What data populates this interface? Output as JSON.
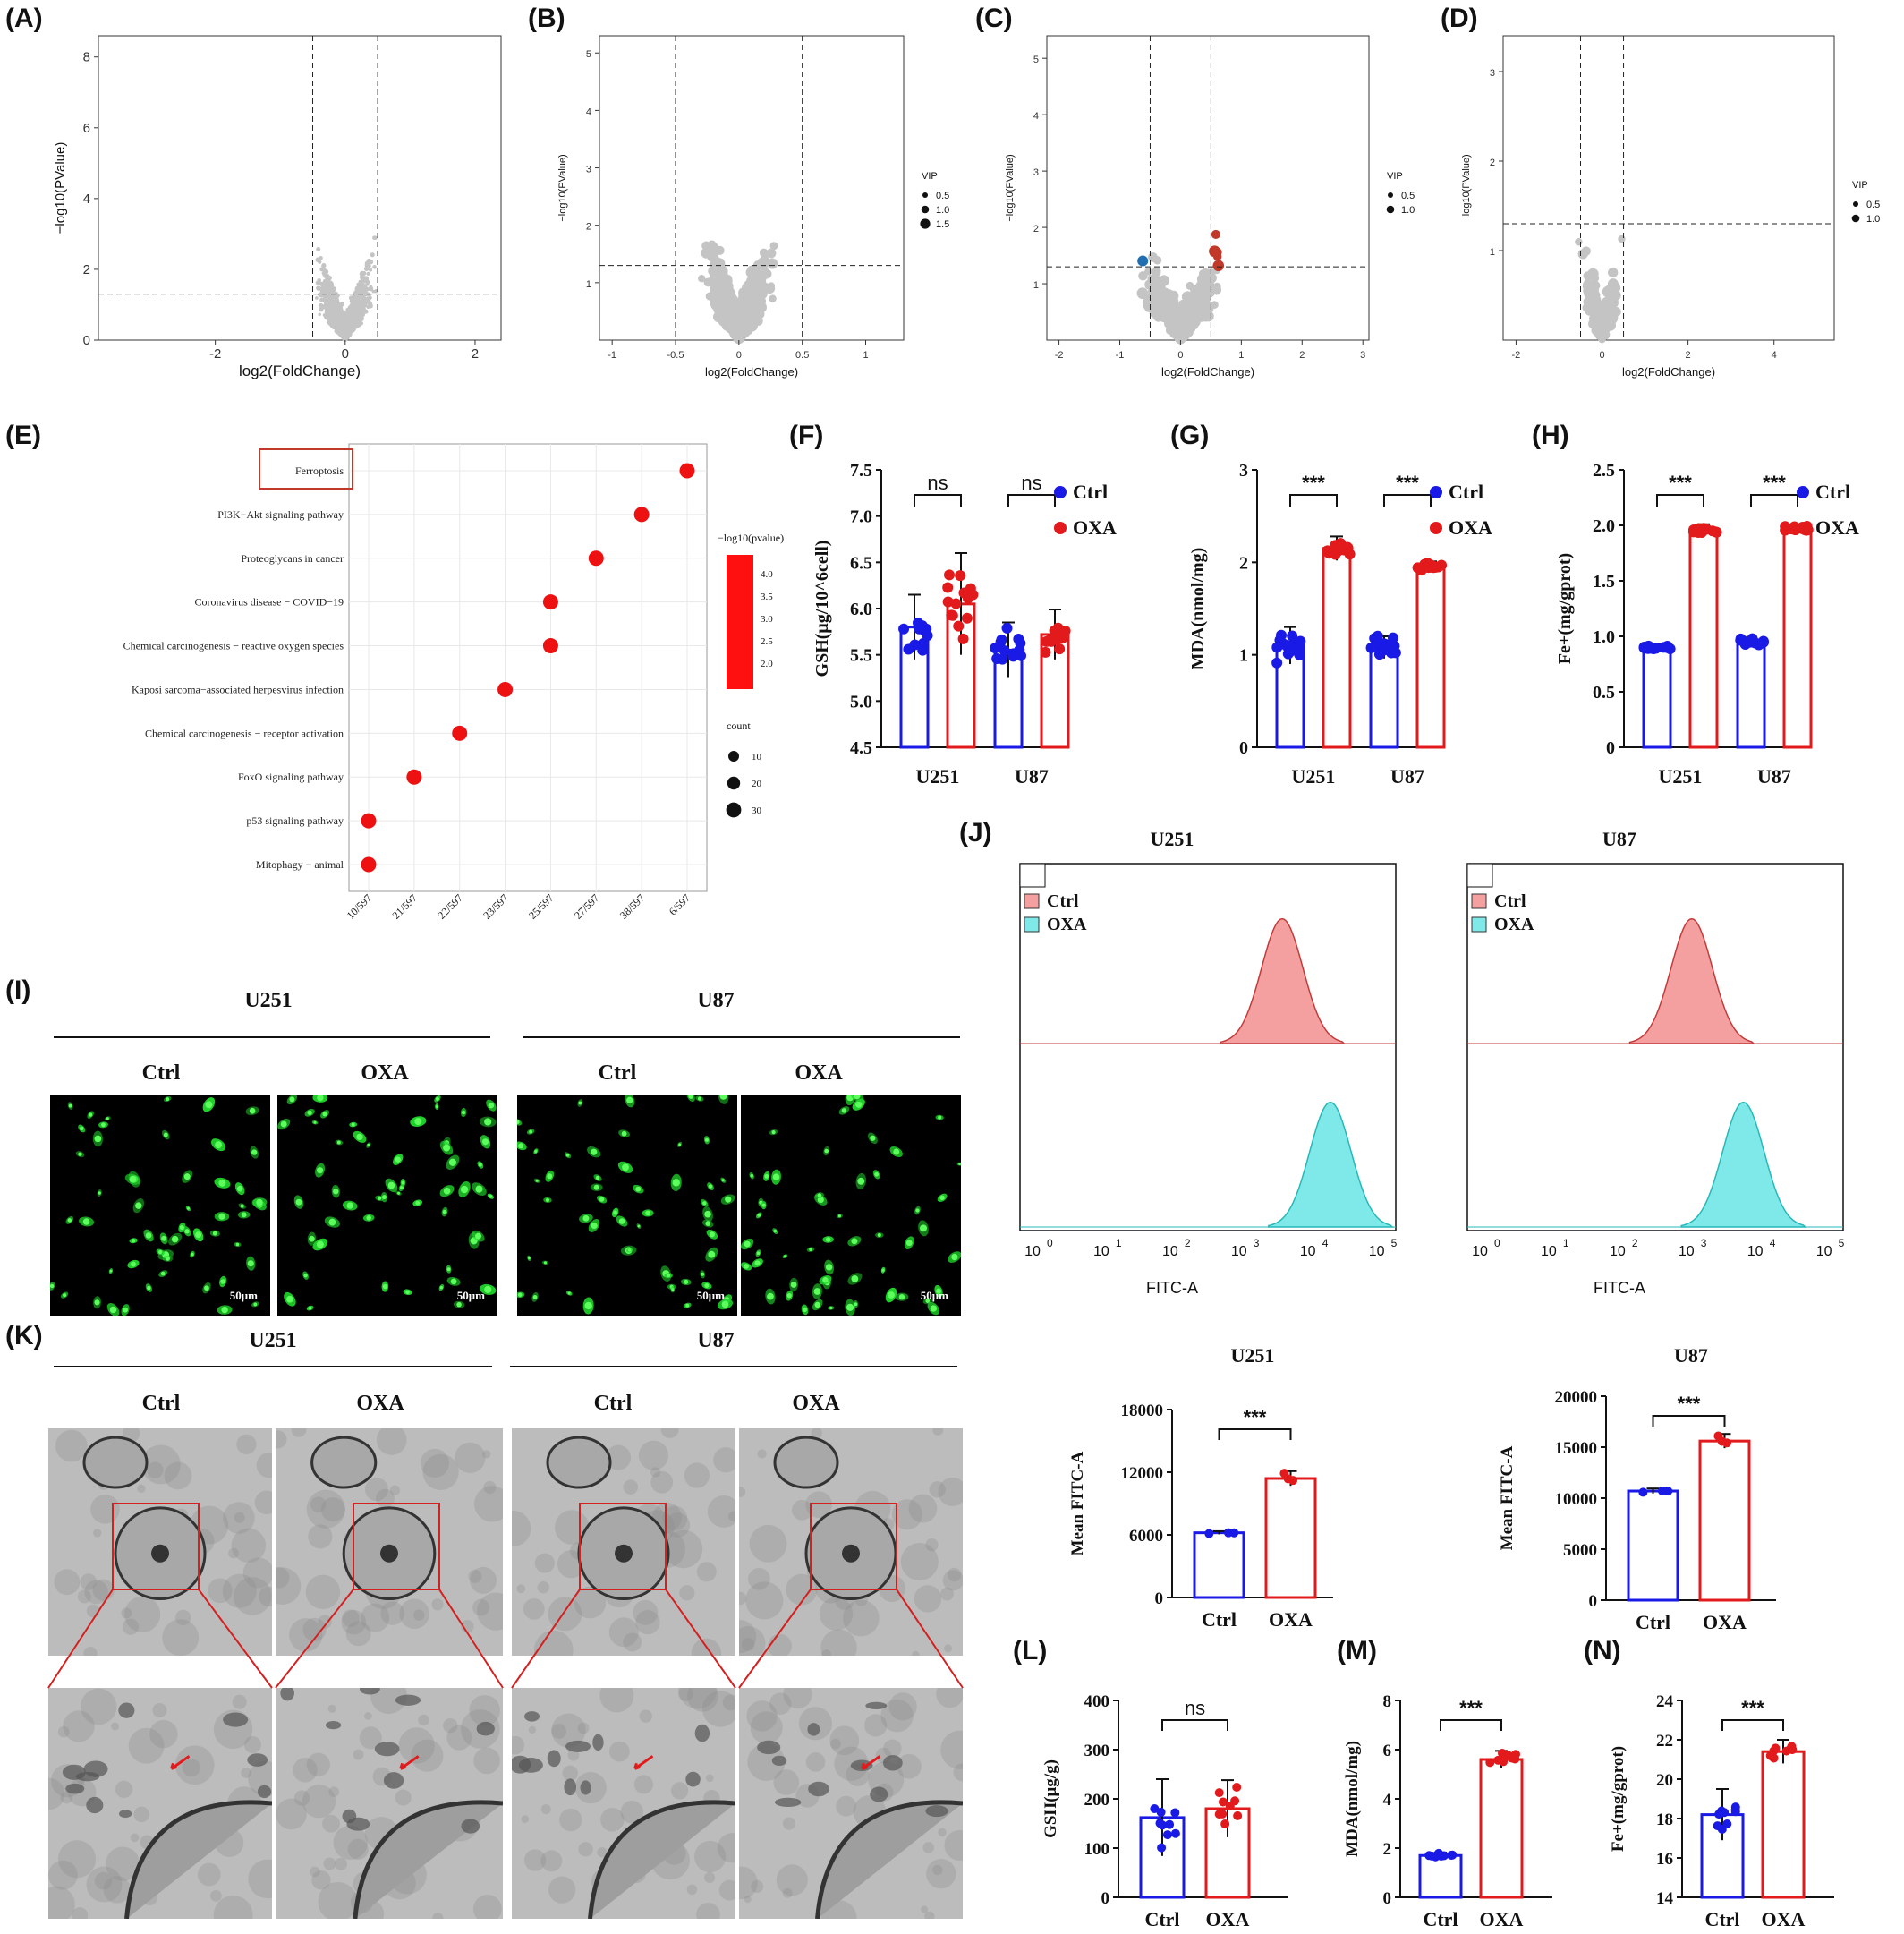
{
  "panel_labels": [
    "(A)",
    "(B)",
    "(C)",
    "(D)",
    "(E)",
    "(F)",
    "(G)",
    "(H)",
    "(I)",
    "(J)",
    "(K)",
    "(L)",
    "(M)",
    "(N)"
  ],
  "colors": {
    "down": "#1f6fb2",
    "up": "#c0392b",
    "ns": "#c4c4c4",
    "ctrl": "#1a1ae6",
    "oxa": "#e31a1c",
    "dot": "#ee1111",
    "ctrl_hist": "#f4a0a0",
    "oxa_hist": "#7fe8e8"
  },
  "chart_data": [
    {
      "id": "A",
      "type": "scatter",
      "title": "",
      "xlabel": "log2(FoldChange)",
      "ylabel": "−log10(PValue)",
      "xlim": [
        -3.8,
        2.4
      ],
      "ylim": [
        0,
        8.6
      ],
      "xticks": [
        -2,
        0,
        2
      ],
      "yticks": [
        0,
        2,
        4,
        6,
        8
      ],
      "thresholds": {
        "x": [
          -0.5,
          0.5
        ],
        "y": 1.3
      },
      "legend": null
    },
    {
      "id": "B",
      "type": "scatter",
      "title": "",
      "xlabel": "log2(FoldChange)",
      "ylabel": "−log10(PValue)",
      "xlim": [
        -1.1,
        1.3
      ],
      "ylim": [
        0,
        5.3
      ],
      "xticks": [
        -1.0,
        -0.5,
        0.0,
        0.5,
        1.0
      ],
      "yticks": [
        1,
        2,
        3,
        4,
        5
      ],
      "thresholds": {
        "x": [
          -0.5,
          0.5
        ],
        "y": 1.3
      },
      "legend": {
        "title": "VIP",
        "items": [
          "0.5",
          "1.0",
          "1.5"
        ]
      }
    },
    {
      "id": "C",
      "type": "scatter",
      "title": "",
      "xlabel": "log2(FoldChange)",
      "ylabel": "−log10(PValue)",
      "xlim": [
        -2.2,
        3.1
      ],
      "ylim": [
        0,
        5.4
      ],
      "xticks": [
        -2,
        -1,
        0,
        1,
        2,
        3
      ],
      "yticks": [
        1,
        2,
        3,
        4,
        5
      ],
      "thresholds": {
        "x": [
          -0.5,
          0.5
        ],
        "y": 1.3
      },
      "legend": {
        "title": "VIP",
        "items": [
          "0.5",
          "1.0"
        ]
      }
    },
    {
      "id": "D",
      "type": "scatter",
      "title": "",
      "xlabel": "log2(FoldChange)",
      "ylabel": "−log10(PValue)",
      "xlim": [
        -2.3,
        5.4
      ],
      "ylim": [
        0,
        3.4
      ],
      "xticks": [
        -2,
        0,
        2,
        4
      ],
      "yticks": [
        1,
        2,
        3
      ],
      "thresholds": {
        "x": [
          -0.5,
          0.5
        ],
        "y": 1.3
      },
      "legend": {
        "title": "VIP",
        "items": [
          "0.5",
          "1.0"
        ]
      }
    },
    {
      "id": "E",
      "type": "scatter",
      "title": "",
      "pathways": [
        "Ferroptosis",
        "PI3K−Akt signaling pathway",
        "Proteoglycans in cancer",
        "Coronavirus disease − COVID−19",
        "Chemical carcinogenesis − reactive oxygen species",
        "Kaposi sarcoma−associated herpesvirus infection",
        "Chemical carcinogenesis − receptor activation",
        "FoxO signaling pathway",
        "p53 signaling pathway",
        "Mitophagy − animal"
      ],
      "x_categories": [
        "10/597",
        "21/597",
        "22/597",
        "23/597",
        "25/597",
        "27/597",
        "38/597",
        "6/597"
      ],
      "points": [
        [
          "6/597",
          "Ferroptosis"
        ],
        [
          "38/597",
          "PI3K−Akt signaling pathway"
        ],
        [
          "27/597",
          "Proteoglycans in cancer"
        ],
        [
          "25/597",
          "Coronavirus disease − COVID−19"
        ],
        [
          "25/597",
          "Chemical carcinogenesis − reactive oxygen species"
        ],
        [
          "23/597",
          "Kaposi sarcoma−associated herpesvirus infection"
        ],
        [
          "22/597",
          "Chemical carcinogenesis − receptor activation"
        ],
        [
          "21/597",
          "FoxO signaling pathway"
        ],
        [
          "10/597",
          "p53 signaling pathway"
        ],
        [
          "10/597",
          "Mitophagy − animal"
        ]
      ],
      "colorbar": {
        "title": "−log10(pvalue)",
        "ticks": [
          "4.0",
          "3.5",
          "3.0",
          "2.5",
          "2.0"
        ]
      },
      "size_legend": {
        "title": "count",
        "items": [
          "10",
          "20",
          "30"
        ]
      }
    },
    {
      "id": "F",
      "type": "bar",
      "ylabel": "GSH(μg/10^6cell)",
      "categories": [
        "U251",
        "U87"
      ],
      "series": [
        {
          "name": "Ctrl",
          "values": [
            5.8,
            5.55
          ],
          "sd": [
            0.35,
            0.3
          ]
        },
        {
          "name": "OXA",
          "values": [
            6.05,
            5.72
          ],
          "sd": [
            0.55,
            0.27
          ]
        }
      ],
      "ylim": [
        4.5,
        7.5
      ],
      "yticks": [
        "4.5",
        "5.0",
        "5.5",
        "6.0",
        "6.5",
        "7.0",
        "7.5"
      ],
      "sig": [
        "ns",
        "ns"
      ]
    },
    {
      "id": "G",
      "type": "bar",
      "ylabel": "MDA(nmol/mg)",
      "categories": [
        "U251",
        "U87"
      ],
      "series": [
        {
          "name": "Ctrl",
          "values": [
            1.1,
            1.08
          ],
          "sd": [
            0.2,
            0.12
          ]
        },
        {
          "name": "OXA",
          "values": [
            2.15,
            1.95
          ],
          "sd": [
            0.13,
            0.06
          ]
        }
      ],
      "ylim": [
        0,
        3
      ],
      "yticks": [
        "0",
        "1",
        "2",
        "3"
      ],
      "sig": [
        "***",
        "***"
      ]
    },
    {
      "id": "H",
      "type": "bar",
      "ylabel": "Fe+(mg/gprot)",
      "categories": [
        "U251",
        "U87"
      ],
      "series": [
        {
          "name": "Ctrl",
          "values": [
            0.9,
            0.95
          ],
          "sd": [
            0.03,
            0.04
          ]
        },
        {
          "name": "OXA",
          "values": [
            1.95,
            1.97
          ],
          "sd": [
            0.06,
            0.04
          ]
        }
      ],
      "ylim": [
        0,
        2.5
      ],
      "yticks": [
        "0",
        "0.5",
        "1.0",
        "1.5",
        "2.0",
        "2.5"
      ],
      "sig": [
        "***",
        "***"
      ]
    },
    {
      "id": "J",
      "type": "area",
      "title": "U251",
      "xlabel": "FITC-A",
      "xticks": [
        "10",
        "10",
        "10",
        "10",
        "10",
        "10"
      ],
      "xexp": [
        "0",
        "1",
        "2",
        "3",
        "4",
        "5"
      ],
      "legend": [
        "Ctrl",
        "OXA"
      ],
      "peaks_log10": [
        3.55,
        4.25
      ]
    },
    {
      "id": "J2",
      "type": "area",
      "title": "U87",
      "xlabel": "FITC-A",
      "xticks": [
        "10",
        "10",
        "10",
        "10",
        "10",
        "10"
      ],
      "xexp": [
        "0",
        "1",
        "2",
        "3",
        "4",
        "5"
      ],
      "legend": [
        "Ctrl",
        "OXA"
      ],
      "peaks_log10": [
        3.0,
        3.75
      ]
    },
    {
      "id": "J3",
      "type": "bar",
      "title": "U251",
      "ylabel": "Mean FITC-A",
      "categories": [
        "Ctrl",
        "OXA"
      ],
      "values": [
        6200,
        11400
      ],
      "sd": [
        150,
        700
      ],
      "ylim": [
        0,
        18000
      ],
      "yticks": [
        "0",
        "6000",
        "12000",
        "18000"
      ],
      "sig": "***"
    },
    {
      "id": "J4",
      "type": "bar",
      "title": "U87",
      "ylabel": "Mean FITC-A",
      "categories": [
        "Ctrl",
        "OXA"
      ],
      "values": [
        10700,
        15600
      ],
      "sd": [
        250,
        700
      ],
      "ylim": [
        0,
        20000
      ],
      "yticks": [
        "0",
        "5000",
        "10000",
        "15000",
        "20000"
      ],
      "sig": "***"
    },
    {
      "id": "L",
      "type": "bar",
      "ylabel": "GSH(μg/g)",
      "categories": [
        "Ctrl",
        "OXA"
      ],
      "values": [
        162,
        180
      ],
      "sd": [
        78,
        58
      ],
      "ylim": [
        0,
        400
      ],
      "yticks": [
        "0",
        "100",
        "200",
        "300",
        "400"
      ],
      "sig": "ns"
    },
    {
      "id": "M",
      "type": "bar",
      "ylabel": "MDA(nmol/mg)",
      "categories": [
        "Ctrl",
        "OXA"
      ],
      "values": [
        1.7,
        5.6
      ],
      "sd": [
        0.12,
        0.35
      ],
      "ylim": [
        0,
        8
      ],
      "yticks": [
        "0",
        "2",
        "4",
        "6",
        "8"
      ],
      "sig": "***"
    },
    {
      "id": "N",
      "type": "bar",
      "ylabel": "Fe+(mg/gprot)",
      "categories": [
        "Ctrl",
        "OXA"
      ],
      "values": [
        18.2,
        21.4
      ],
      "sd": [
        1.3,
        0.6
      ],
      "ylim": [
        14,
        24
      ],
      "yticks": [
        "14",
        "16",
        "18",
        "20",
        "22",
        "24"
      ],
      "sig": "***"
    }
  ],
  "panel_I": {
    "groups": [
      "U251",
      "U87"
    ],
    "conditions": [
      "Ctrl",
      "OXA",
      "Ctrl",
      "OXA"
    ],
    "scale": "50μm"
  },
  "panel_K": {
    "groups": [
      "U251",
      "U87"
    ],
    "conditions": [
      "Ctrl",
      "OXA",
      "Ctrl",
      "OXA"
    ]
  }
}
